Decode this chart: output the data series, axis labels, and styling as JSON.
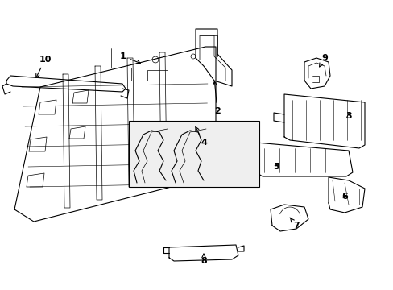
{
  "bg_color": "#ffffff",
  "line_color": "#000000",
  "line_width": 0.8,
  "fig_width": 4.89,
  "fig_height": 3.6,
  "dpi": 100
}
